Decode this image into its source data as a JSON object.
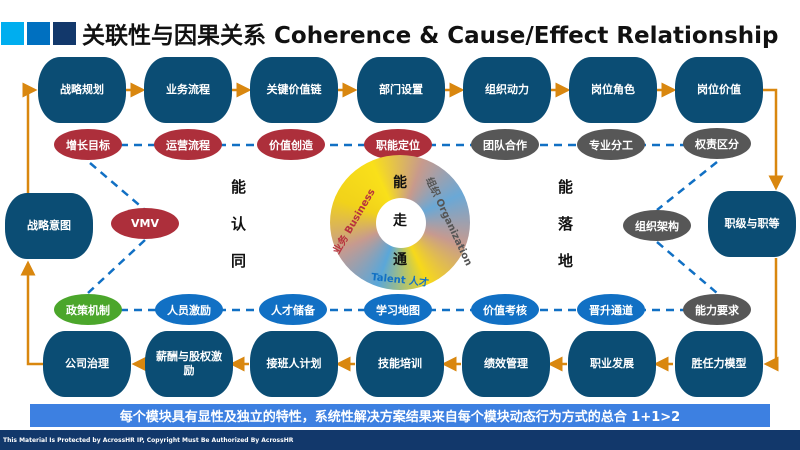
{
  "title": "关联性与因果关系 Coherence & Cause/Effect Relationship",
  "colors": {
    "top_box": "#0b4d74",
    "red": "#ad2f3b",
    "grey": "#575757",
    "blue": "#1170c4",
    "green": "#4ba62b",
    "arrow": "#d9870f",
    "banner": "#3d80e1",
    "footer": "#12386b"
  },
  "top_boxes": [
    "战略规划",
    "业务流程",
    "关键价值链",
    "部门设置",
    "组织动力",
    "岗位角色",
    "岗位价值"
  ],
  "top_ovals": [
    "增长目标",
    "运营流程",
    "价值创造",
    "职能定位",
    "团队合作",
    "专业分工",
    "权责区分"
  ],
  "left_box": "战略意图",
  "right_box": "职级与职等",
  "vmv": "VMV",
  "org_arch": "组织架构",
  "bottom_ovals": [
    "政策机制",
    "人员激励",
    "人才储备",
    "学习地图",
    "价值考核",
    "晋升通道",
    "能力要求"
  ],
  "bottom_boxes": [
    "公司治理",
    "薪酬与股权激励",
    "接班人计划",
    "技能培训",
    "绩效管理",
    "职业发展",
    "胜任力模型"
  ],
  "left_vertical": [
    "能",
    "认",
    "同"
  ],
  "right_vertical": [
    "能",
    "落",
    "地"
  ],
  "center": {
    "chars": [
      "能",
      "走",
      "通"
    ],
    "business": "业务 Business",
    "organization": "组织 Organization",
    "talent": "Talent 人才"
  },
  "banner": "每个模块具有显性及独立的特性，系统性解决方案结果来自每个模块动态行为方式的总合 1+1>2",
  "footer": "This Material Is Protected by AcrossHR IP,  Copyright Must  Be Authorized By AcrossHR"
}
